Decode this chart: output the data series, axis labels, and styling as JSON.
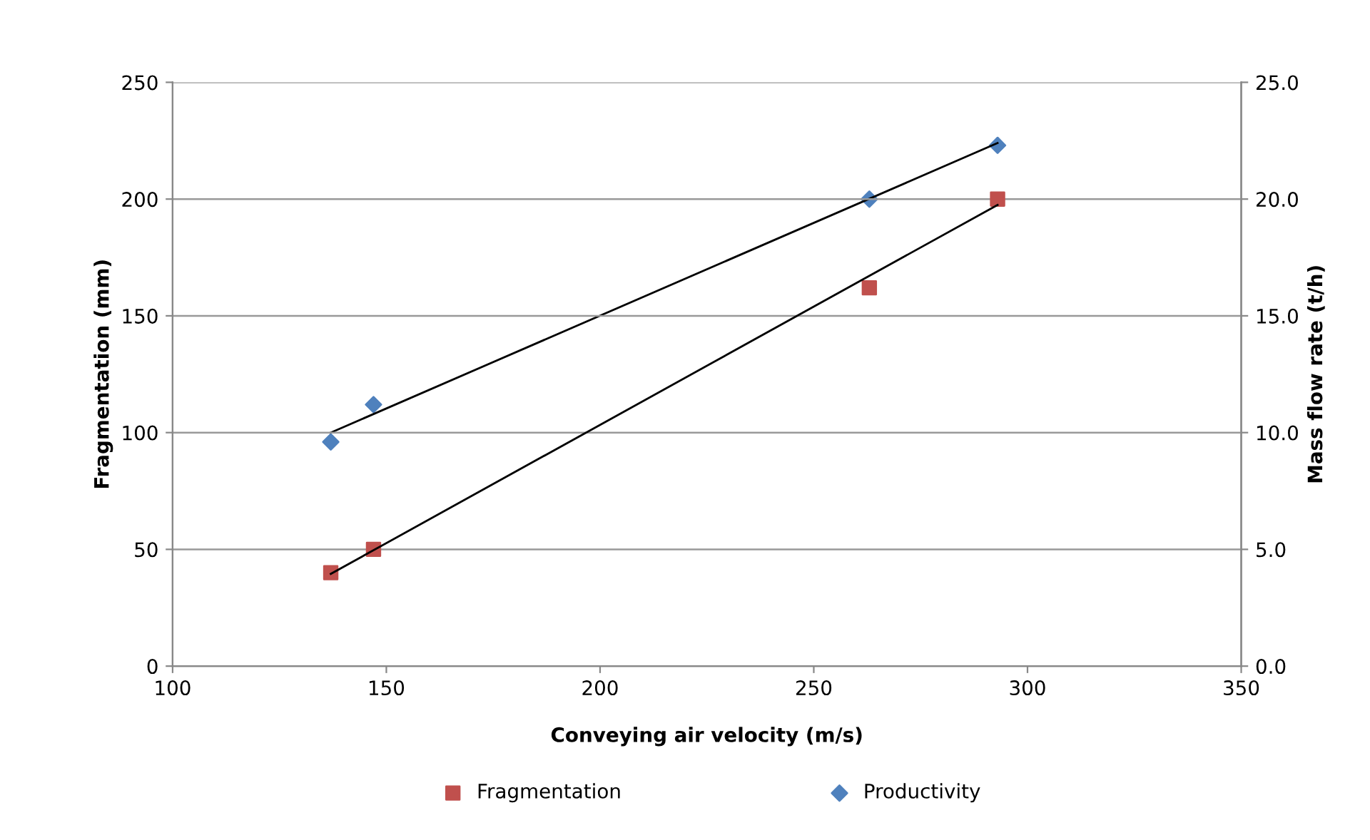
{
  "chart_data": {
    "type": "scatter",
    "xlabel": "Conveying air velocity (m/s)",
    "ylabel": "Fragmentation (mm)",
    "y2label": "Mass flow rate (t/h)",
    "xlim": [
      100,
      350
    ],
    "xticks": [
      100,
      150,
      200,
      250,
      300,
      350
    ],
    "ylim": [
      0,
      250
    ],
    "yticks": [
      0,
      50,
      100,
      150,
      200,
      250
    ],
    "y2lim": [
      0,
      25
    ],
    "y2ticks": [
      {
        "value": 0,
        "label": "0.0"
      },
      {
        "value": 5,
        "label": "5.0"
      },
      {
        "value": 10,
        "label": "10.0"
      },
      {
        "value": 15,
        "label": "15.0"
      },
      {
        "value": 20,
        "label": "20.0"
      },
      {
        "value": 25,
        "label": "25.0"
      }
    ],
    "grid": "y",
    "legend": "bottom",
    "series": [
      {
        "name": "Fragmentation",
        "marker": "square",
        "color": "#c0504d",
        "x": [
          137,
          147,
          263,
          293
        ],
        "values": [
          40,
          50,
          162,
          200
        ]
      },
      {
        "name": "Productivity",
        "marker": "diamond",
        "color": "#4f81bd",
        "axis": "y2",
        "x": [
          137,
          147,
          263,
          293
        ],
        "values": [
          9.6,
          11.2,
          20.0,
          22.3
        ]
      },
      {
        "type": "line",
        "color": "#000000",
        "marker": "none",
        "x": [
          137,
          293
        ],
        "values": [
          39.5,
          197.5
        ]
      },
      {
        "type": "line",
        "color": "#000000",
        "marker": "none",
        "axis": "y2",
        "x": [
          137,
          293
        ],
        "values": [
          10.0,
          22.4
        ]
      }
    ]
  }
}
